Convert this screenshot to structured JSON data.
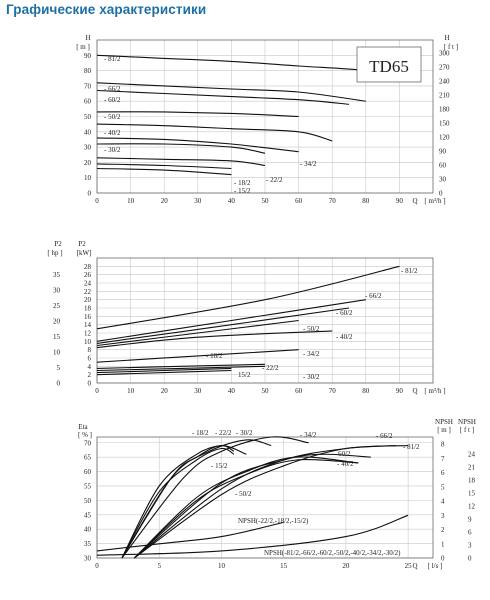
{
  "page": {
    "title": "Графические характеристики"
  },
  "model_label": "TD65",
  "chart_data": [
    {
      "id": "head",
      "type": "line",
      "xlabel": "Q",
      "xunit": "[ m³/h ]",
      "ylabel": "H",
      "yunit": "[ m ]",
      "y2label": "H",
      "y2unit": "[ f t ]",
      "xlim": [
        0,
        100
      ],
      "ylim": [
        0,
        100
      ],
      "xticks": [
        0,
        10,
        20,
        30,
        40,
        50,
        60,
        70,
        80,
        90
      ],
      "yticks": [
        0,
        10,
        20,
        30,
        40,
        50,
        60,
        70,
        80,
        90
      ],
      "y2ticks": [
        0,
        30,
        60,
        90,
        120,
        150,
        180,
        210,
        240,
        270,
        300
      ],
      "y2factor": 3.281,
      "series": [
        {
          "name": "81/2",
          "x": [
            0,
            20,
            40,
            60,
            80,
            90
          ],
          "values": [
            90,
            88,
            86,
            83,
            80,
            75
          ]
        },
        {
          "name": "66/2",
          "x": [
            0,
            20,
            40,
            60,
            80
          ],
          "values": [
            72,
            70,
            68,
            66,
            60
          ]
        },
        {
          "name": "60/2",
          "x": [
            0,
            20,
            40,
            60,
            75
          ],
          "values": [
            67,
            65,
            63,
            61,
            58
          ]
        },
        {
          "name": "50/2",
          "x": [
            0,
            20,
            40,
            60
          ],
          "values": [
            53,
            53,
            52,
            50
          ]
        },
        {
          "name": "40/2",
          "x": [
            0,
            20,
            40,
            60,
            70
          ],
          "values": [
            45,
            44,
            42,
            40,
            34
          ]
        },
        {
          "name": "34/2",
          "x": [
            0,
            20,
            40,
            60
          ],
          "values": [
            36,
            35,
            32,
            27
          ]
        },
        {
          "name": "30/2",
          "x": [
            0,
            20,
            40,
            50
          ],
          "values": [
            32,
            32,
            30,
            26
          ]
        },
        {
          "name": "22/2",
          "x": [
            0,
            20,
            40,
            50
          ],
          "values": [
            23,
            22,
            21,
            18
          ]
        },
        {
          "name": "18/2",
          "x": [
            0,
            20,
            40
          ],
          "values": [
            19,
            18,
            16
          ]
        },
        {
          "name": "15/2",
          "x": [
            0,
            20,
            40
          ],
          "values": [
            16,
            15,
            12
          ]
        }
      ]
    },
    {
      "id": "power",
      "type": "line",
      "xlabel": "Q",
      "xunit": "[ m³/h ]",
      "ylabel": "P2",
      "yunit": "[kW]",
      "y2label": "P2",
      "y2unit": "[ hp ]",
      "xlim": [
        0,
        100
      ],
      "ylim": [
        0,
        30
      ],
      "yticks": [
        0,
        2,
        4,
        6,
        8,
        10,
        12,
        14,
        16,
        18,
        20,
        22,
        24,
        26,
        28
      ],
      "xticks": [
        0,
        10,
        20,
        30,
        40,
        50,
        60,
        70,
        80,
        90
      ],
      "hpticks": [
        0,
        5,
        10,
        15,
        20,
        25,
        30,
        35
      ],
      "hpfactor": 1.341,
      "series": [
        {
          "name": "81/2",
          "x": [
            0,
            50,
            90
          ],
          "values": [
            13,
            20,
            28
          ]
        },
        {
          "name": "66/2",
          "x": [
            0,
            40,
            80
          ],
          "values": [
            10,
            15,
            20
          ]
        },
        {
          "name": "60/2",
          "x": [
            0,
            40,
            75
          ],
          "values": [
            9.5,
            14,
            18
          ]
        },
        {
          "name": "50/2",
          "x": [
            0,
            30,
            60
          ],
          "values": [
            9,
            12,
            15
          ]
        },
        {
          "name": "40/2",
          "x": [
            0,
            30,
            70
          ],
          "values": [
            8.5,
            11,
            12.5
          ]
        },
        {
          "name": "34/2",
          "x": [
            0,
            30,
            60
          ],
          "values": [
            5,
            6.5,
            8
          ]
        },
        {
          "name": "30/2",
          "x": [
            0,
            25,
            50
          ],
          "values": [
            3.5,
            4,
            4.5
          ]
        },
        {
          "name": "22/2",
          "x": [
            0,
            25,
            50
          ],
          "values": [
            3,
            3.5,
            4
          ]
        },
        {
          "name": "18/2",
          "x": [
            0,
            20,
            40
          ],
          "values": [
            2.5,
            3,
            3.5
          ]
        },
        {
          "name": "15/2",
          "x": [
            0,
            20,
            40
          ],
          "values": [
            2,
            2.5,
            3
          ]
        }
      ]
    },
    {
      "id": "efficiency",
      "type": "line",
      "xlabel": "Q",
      "xunit": "[ l/s ]",
      "ylabel": "Eta",
      "yunit": "[ % ]",
      "npsh_label": "NPSH",
      "npsh_unit_m": "[ m ]",
      "npsh_unit_ft": "[ f t ]",
      "xlim": [
        0,
        27
      ],
      "ylim": [
        30,
        72
      ],
      "xticks": [
        0,
        5,
        10,
        15,
        20,
        25
      ],
      "yticks": [
        30,
        35,
        40,
        45,
        50,
        55,
        60,
        65,
        70
      ],
      "npsh_m_ticks": [
        0,
        1,
        2,
        3,
        4,
        5,
        6,
        7,
        8
      ],
      "npsh_ft_ticks": [
        0,
        3,
        6,
        9,
        12,
        15,
        18,
        21,
        24
      ],
      "npsh_m_max": 8.5,
      "npsh_ft_factor": 3.281,
      "series": [
        {
          "name": "81/2",
          "x": [
            3,
            10,
            15,
            20,
            25
          ],
          "values": [
            30,
            52,
            62,
            68,
            69
          ]
        },
        {
          "name": "66/2",
          "x": [
            3,
            10,
            15,
            20,
            24
          ],
          "values": [
            30,
            54,
            64,
            68,
            69
          ]
        },
        {
          "name": "60/2",
          "x": [
            3,
            10,
            15,
            18,
            22
          ],
          "values": [
            30,
            56,
            64,
            66,
            65
          ]
        },
        {
          "name": "50/2",
          "x": [
            3,
            8,
            12,
            16,
            21
          ],
          "values": [
            30,
            50,
            59,
            64,
            63
          ]
        },
        {
          "name": "40/2",
          "x": [
            3,
            8,
            12,
            16,
            21
          ],
          "values": [
            30,
            51,
            60,
            65,
            63
          ]
        },
        {
          "name": "34/2",
          "x": [
            2,
            7,
            10,
            14,
            17
          ],
          "values": [
            30,
            58,
            67,
            72,
            70
          ]
        },
        {
          "name": "30/2",
          "x": [
            2,
            6,
            9,
            12,
            14
          ],
          "values": [
            30,
            58,
            67,
            71,
            69
          ]
        },
        {
          "name": "22/2",
          "x": [
            2,
            6,
            8,
            10,
            12
          ],
          "values": [
            30,
            58,
            65,
            69,
            66
          ]
        },
        {
          "name": "18/2",
          "x": [
            2,
            5,
            8,
            10,
            11
          ],
          "values": [
            30,
            55,
            66,
            69,
            67
          ]
        },
        {
          "name": "15/2",
          "x": [
            2,
            5,
            8,
            10,
            11
          ],
          "values": [
            30,
            53,
            64,
            68,
            66
          ]
        }
      ],
      "npsh_series": [
        {
          "name": "NPSH(-22/2,-18/2,-15/2)",
          "x": [
            0,
            5,
            10,
            15
          ],
          "values": [
            0.5,
            1,
            1.5,
            2.5
          ]
        },
        {
          "name": "NPSH(-81/2,-66/2,-60/2,-50/2,-40/2,-34/2,-30/2)",
          "x": [
            0,
            10,
            20,
            25
          ],
          "values": [
            0.2,
            0.5,
            1.5,
            3
          ]
        }
      ]
    }
  ]
}
